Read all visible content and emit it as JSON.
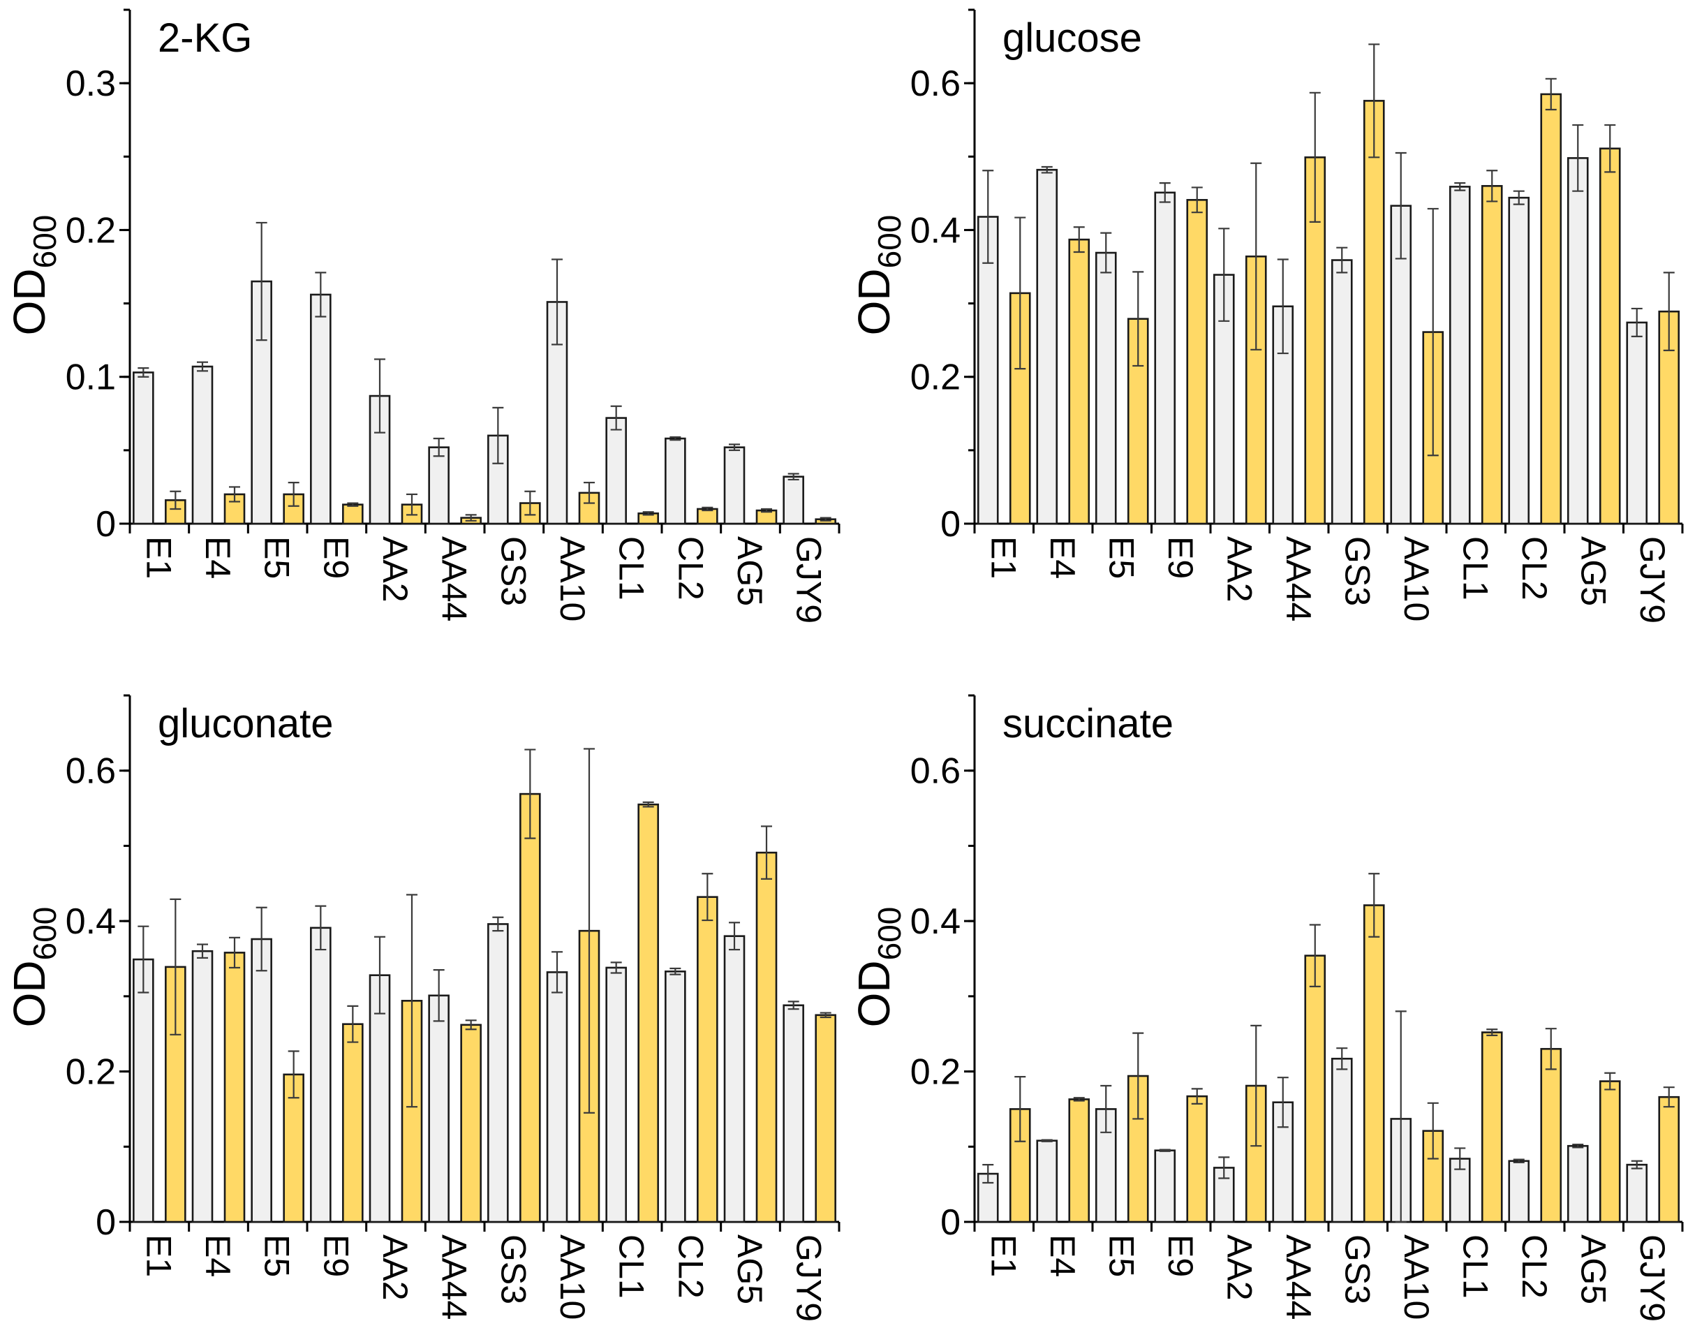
{
  "colors": {
    "series_a": "#f0f0f0",
    "series_b": "#ffd966",
    "edge": "#1a1a1a",
    "error": "#3a3a3a"
  },
  "chart_data": [
    {
      "type": "bar",
      "title": "2-KG",
      "ylabel_main": "OD",
      "ylabel_sub": "600",
      "xlabel": "",
      "ylim": [
        0,
        0.35
      ],
      "yticks": [
        0,
        0.1,
        0.2,
        0.3
      ],
      "ytick_labels": [
        "0",
        "0.1",
        "0.2",
        "0.3"
      ],
      "minor_step": 0.05,
      "categories": [
        "E1",
        "E4",
        "E5",
        "E9",
        "AA2",
        "AA44",
        "GS3",
        "AA10",
        "CL1",
        "CL2",
        "AG5",
        "GJY9"
      ],
      "series": [
        {
          "name": "series_a",
          "color": "#f0f0f0",
          "values": [
            0.103,
            0.107,
            0.165,
            0.156,
            0.087,
            0.052,
            0.06,
            0.151,
            0.072,
            0.058,
            0.052,
            0.032
          ],
          "errors": [
            0.003,
            0.003,
            0.04,
            0.015,
            0.025,
            0.006,
            0.019,
            0.029,
            0.008,
            0.001,
            0.002,
            0.002
          ]
        },
        {
          "name": "series_b",
          "color": "#ffd966",
          "values": [
            0.016,
            0.02,
            0.02,
            0.013,
            0.013,
            0.004,
            0.014,
            0.021,
            0.007,
            0.01,
            0.009,
            0.003
          ],
          "errors": [
            0.006,
            0.005,
            0.008,
            0.001,
            0.007,
            0.002,
            0.008,
            0.007,
            0.001,
            0.001,
            0.001,
            0.001
          ]
        }
      ]
    },
    {
      "type": "bar",
      "title": "glucose",
      "ylabel_main": "OD",
      "ylabel_sub": "600",
      "xlabel": "",
      "ylim": [
        0,
        0.7
      ],
      "yticks": [
        0,
        0.2,
        0.4,
        0.6
      ],
      "ytick_labels": [
        "0",
        "0.2",
        "0.4",
        "0.6"
      ],
      "minor_step": 0.1,
      "categories": [
        "E1",
        "E4",
        "E5",
        "E9",
        "AA2",
        "AA44",
        "GS3",
        "AA10",
        "CL1",
        "CL2",
        "AG5",
        "GJY9"
      ],
      "series": [
        {
          "name": "series_a",
          "color": "#f0f0f0",
          "values": [
            0.418,
            0.482,
            0.369,
            0.451,
            0.339,
            0.296,
            0.359,
            0.433,
            0.459,
            0.444,
            0.498,
            0.274
          ],
          "errors": [
            0.063,
            0.004,
            0.027,
            0.013,
            0.063,
            0.064,
            0.017,
            0.072,
            0.005,
            0.009,
            0.045,
            0.019
          ]
        },
        {
          "name": "series_b",
          "color": "#ffd966",
          "values": [
            0.314,
            0.387,
            0.279,
            0.441,
            0.364,
            0.499,
            0.576,
            0.261,
            0.46,
            0.585,
            0.511,
            0.289
          ],
          "errors": [
            0.103,
            0.017,
            0.064,
            0.017,
            0.127,
            0.088,
            0.077,
            0.168,
            0.021,
            0.021,
            0.032,
            0.053
          ]
        }
      ]
    },
    {
      "type": "bar",
      "title": "gluconate",
      "ylabel_main": "OD",
      "ylabel_sub": "600",
      "xlabel": "",
      "ylim": [
        0,
        0.7
      ],
      "yticks": [
        0,
        0.2,
        0.4,
        0.6
      ],
      "ytick_labels": [
        "0",
        "0.2",
        "0.4",
        "0.6"
      ],
      "minor_step": 0.1,
      "categories": [
        "E1",
        "E4",
        "E5",
        "E9",
        "AA2",
        "AA44",
        "GS3",
        "AA10",
        "CL1",
        "CL2",
        "AG5",
        "GJY9"
      ],
      "series": [
        {
          "name": "series_a",
          "color": "#f0f0f0",
          "values": [
            0.349,
            0.36,
            0.376,
            0.391,
            0.328,
            0.301,
            0.396,
            0.332,
            0.338,
            0.333,
            0.38,
            0.288
          ],
          "errors": [
            0.044,
            0.009,
            0.042,
            0.029,
            0.051,
            0.034,
            0.009,
            0.027,
            0.007,
            0.004,
            0.018,
            0.005
          ]
        },
        {
          "name": "series_b",
          "color": "#ffd966",
          "values": [
            0.339,
            0.358,
            0.196,
            0.263,
            0.294,
            0.262,
            0.569,
            0.387,
            0.555,
            0.432,
            0.491,
            0.275
          ],
          "errors": [
            0.09,
            0.02,
            0.031,
            0.024,
            0.141,
            0.006,
            0.059,
            0.242,
            0.003,
            0.031,
            0.035,
            0.003
          ]
        }
      ]
    },
    {
      "type": "bar",
      "title": "succinate",
      "ylabel_main": "OD",
      "ylabel_sub": "600",
      "xlabel": "",
      "ylim": [
        0,
        0.7
      ],
      "yticks": [
        0,
        0.2,
        0.4,
        0.6
      ],
      "ytick_labels": [
        "0",
        "0.2",
        "0.4",
        "0.6"
      ],
      "minor_step": 0.1,
      "categories": [
        "E1",
        "E4",
        "E5",
        "E9",
        "AA2",
        "AA44",
        "GS3",
        "AA10",
        "CL1",
        "CL2",
        "AG5",
        "GJY9"
      ],
      "series": [
        {
          "name": "series_a",
          "color": "#f0f0f0",
          "values": [
            0.064,
            0.108,
            0.15,
            0.095,
            0.072,
            0.159,
            0.217,
            0.137,
            0.084,
            0.081,
            0.101,
            0.076
          ],
          "errors": [
            0.012,
            0.001,
            0.031,
            0.001,
            0.014,
            0.033,
            0.014,
            0.143,
            0.014,
            0.002,
            0.002,
            0.005
          ]
        },
        {
          "name": "series_b",
          "color": "#ffd966",
          "values": [
            0.15,
            0.163,
            0.194,
            0.167,
            0.181,
            0.354,
            0.421,
            0.121,
            0.252,
            0.23,
            0.187,
            0.166
          ],
          "errors": [
            0.043,
            0.002,
            0.057,
            0.01,
            0.08,
            0.041,
            0.042,
            0.037,
            0.004,
            0.027,
            0.011,
            0.013
          ]
        }
      ]
    }
  ]
}
